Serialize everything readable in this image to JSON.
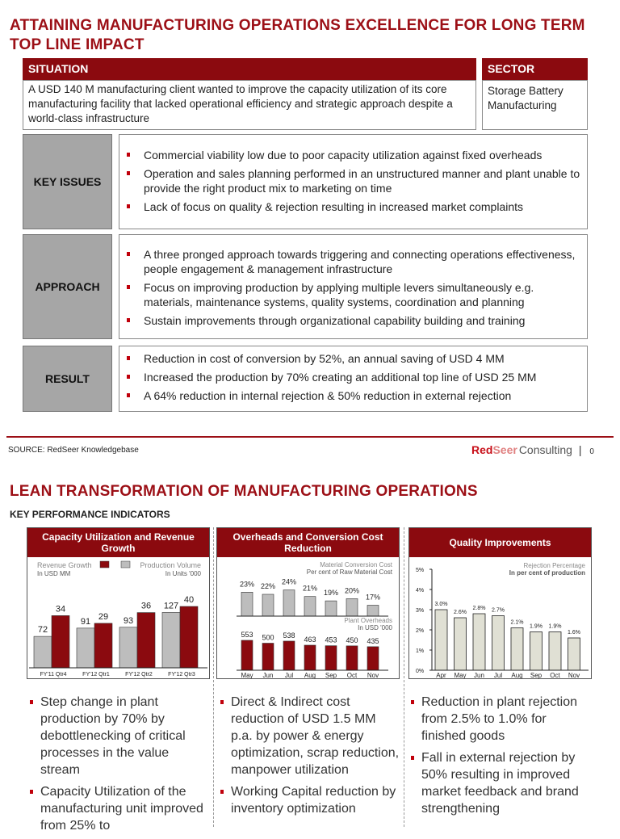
{
  "slide1": {
    "title": "ATTAINING MANUFACTURING OPERATIONS EXCELLENCE FOR LONG TERM TOP LINE IMPACT",
    "situation": {
      "label": "SITUATION",
      "text": "A USD 140 M manufacturing client wanted to improve the capacity utilization of its core manufacturing facility that lacked operational efficiency and strategic approach despite a world-class infrastructure"
    },
    "sector": {
      "label": "SECTOR",
      "text": "Storage Battery Manufacturing"
    },
    "sections": [
      {
        "label": "KEY ISSUES",
        "bullets": [
          "Commercial viability low due to poor capacity utilization against fixed overheads",
          "Operation and sales planning performed in an unstructured manner and plant unable to provide the right product mix to marketing on time",
          "Lack of focus on quality & rejection resulting in increased market complaints"
        ]
      },
      {
        "label": "APPROACH",
        "bullets": [
          "A three pronged approach towards triggering and connecting operations effectiveness, people engagement & management infrastructure",
          "Focus on improving production by applying multiple levers simultaneously e.g. materials, maintenance systems, quality systems, coordination and planning",
          "Sustain improvements through organizational capability building and training"
        ]
      },
      {
        "label": "RESULT",
        "bullets": [
          "Reduction in cost of conversion by 52%, an annual saving of USD 4 MM",
          "Increased the production by 70% creating an additional top line of USD 25 MM",
          "A 64% reduction in internal rejection & 50% reduction in external rejection"
        ]
      }
    ],
    "source": "SOURCE: RedSeer  Knowledgebase",
    "logo": {
      "red": "Red",
      "seer": "Seer",
      "consulting": "Consulting"
    },
    "page_number": "0"
  },
  "slide2": {
    "title": "LEAN TRANSFORMATION OF MANUFACTURING OPERATIONS",
    "subtitle": "KEY PERFORMANCE INDICATORS",
    "columns": [
      {
        "bullets": [
          "Step change in plant production by 70% by debottlenecking of critical processes in the value stream",
          "Capacity Utilization of the manufacturing unit improved from 25% to"
        ]
      },
      {
        "bullets": [
          "Direct & Indirect cost reduction of USD 1.5 MM p.a. by power & energy optimization, scrap reduction, manpower utilization",
          "Working Capital reduction by inventory optimization"
        ]
      },
      {
        "bullets": [
          "Reduction in plant rejection from 2.5% to 1.0% for finished goods",
          "Fall in external rejection by 50% resulting in improved market feedback and brand strengthening"
        ]
      }
    ]
  },
  "colors": {
    "brand": "#8b0a0f",
    "grey_bar": "#bdbdbd",
    "quality_bar": "#e0e0d4"
  },
  "chart_data": [
    {
      "type": "bar",
      "title": "Capacity Utilization and Revenue Growth",
      "categories": [
        "FY'11 Qtr4",
        "FY'12 Qtr1",
        "FY'12 Qtr2",
        "FY'12 Qtr3"
      ],
      "series": [
        {
          "name": "Production Volume",
          "unit": "In Units '000",
          "color": "#bdbdbd",
          "values": [
            72,
            91,
            93,
            127
          ]
        },
        {
          "name": "Revenue Growth",
          "unit": "In USD MM",
          "color": "#8b0a0f",
          "values": [
            34,
            29,
            36,
            40
          ]
        }
      ]
    },
    {
      "type": "bar",
      "title": "Overheads and Conversion Cost Reduction",
      "categories": [
        "May",
        "Jun",
        "Jul",
        "Aug",
        "Sep",
        "Oct",
        "Nov"
      ],
      "series": [
        {
          "name": "Material Conversion Cost",
          "unit": "Per cent of Raw Material Cost",
          "color": "#bdbdbd",
          "values": [
            23,
            22,
            24,
            21,
            19,
            20,
            17
          ],
          "labels": [
            "23%",
            "22%",
            "24%",
            "21%",
            "19%",
            "20%",
            "17%"
          ]
        },
        {
          "name": "Plant Overheads",
          "unit": "In USD '000",
          "color": "#8b0a0f",
          "values": [
            553,
            500,
            538,
            463,
            453,
            450,
            435
          ]
        }
      ]
    },
    {
      "type": "bar",
      "title": "Quality Improvements",
      "categories": [
        "Apr",
        "May",
        "Jun",
        "Jul",
        "Aug",
        "Sep",
        "Oct",
        "Nov"
      ],
      "series": [
        {
          "name": "Rejection Percentage",
          "unit": "In per cent of production",
          "values": [
            3.0,
            2.6,
            2.8,
            2.7,
            2.1,
            1.9,
            1.9,
            1.6
          ],
          "labels": [
            "3.0%",
            "2.6%",
            "2.8%",
            "2.7%",
            "2.1%",
            "1.9%",
            "1.9%",
            "1.6%"
          ]
        }
      ],
      "ylim": [
        0,
        5
      ],
      "yticks": [
        "0%",
        "1%",
        "2%",
        "3%",
        "4%",
        "5%"
      ]
    }
  ]
}
